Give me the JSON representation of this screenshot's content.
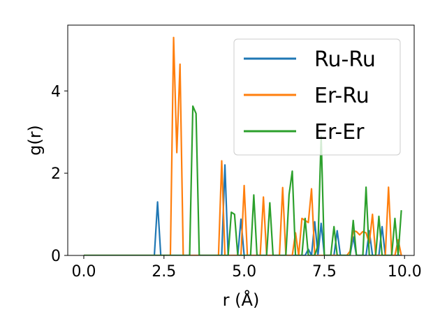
{
  "chart_data": {
    "type": "line",
    "title": "",
    "xlabel": "r (Å)",
    "ylabel": "g(r)",
    "xlim": [
      -0.5,
      10.3
    ],
    "ylim": [
      0,
      5.6
    ],
    "xticks": [
      0.0,
      2.5,
      5.0,
      7.5,
      10.0
    ],
    "xtick_labels": [
      "0.0",
      "2.5",
      "5.0",
      "7.5",
      "10.0"
    ],
    "yticks": [
      0,
      2,
      4
    ],
    "ytick_labels": [
      "0",
      "2",
      "4"
    ],
    "grid": false,
    "legend": "top-right",
    "series": [
      {
        "name": "Ru-Ru",
        "color": "#1f77b4",
        "points": [
          [
            0,
            0
          ],
          [
            2.2,
            0
          ],
          [
            2.3,
            1.3
          ],
          [
            2.4,
            0
          ],
          [
            4.3,
            0
          ],
          [
            4.4,
            2.2
          ],
          [
            4.5,
            0
          ],
          [
            4.8,
            0
          ],
          [
            4.9,
            0.88
          ],
          [
            5.0,
            0
          ],
          [
            6.9,
            0
          ],
          [
            7.0,
            0.15
          ],
          [
            7.1,
            0
          ],
          [
            7.2,
            0.82
          ],
          [
            7.3,
            0
          ],
          [
            7.4,
            0.78
          ],
          [
            7.5,
            0
          ],
          [
            7.8,
            0
          ],
          [
            7.9,
            0.6
          ],
          [
            8.0,
            0
          ],
          [
            8.3,
            0
          ],
          [
            8.4,
            0.45
          ],
          [
            8.5,
            0
          ],
          [
            8.8,
            0
          ],
          [
            8.9,
            0.6
          ],
          [
            9.0,
            0
          ],
          [
            9.2,
            0
          ],
          [
            9.3,
            0.7
          ],
          [
            9.4,
            0
          ],
          [
            9.9,
            0
          ]
        ]
      },
      {
        "name": "Er-Ru",
        "color": "#ff7f0e",
        "points": [
          [
            0,
            0
          ],
          [
            2.7,
            0
          ],
          [
            2.8,
            5.3
          ],
          [
            2.9,
            2.5
          ],
          [
            3.0,
            4.65
          ],
          [
            3.1,
            0
          ],
          [
            4.2,
            0
          ],
          [
            4.3,
            2.3
          ],
          [
            4.4,
            0
          ],
          [
            4.9,
            0
          ],
          [
            5.0,
            1.7
          ],
          [
            5.1,
            0
          ],
          [
            5.5,
            0
          ],
          [
            5.6,
            1.42
          ],
          [
            5.7,
            0
          ],
          [
            6.1,
            0
          ],
          [
            6.2,
            1.65
          ],
          [
            6.3,
            0
          ],
          [
            6.5,
            0
          ],
          [
            6.6,
            0.55
          ],
          [
            6.7,
            0
          ],
          [
            6.8,
            0.9
          ],
          [
            6.9,
            0.85
          ],
          [
            7.0,
            0.8
          ],
          [
            7.1,
            1.62
          ],
          [
            7.2,
            0
          ],
          [
            8.2,
            0
          ],
          [
            8.3,
            0.1
          ],
          [
            8.4,
            0.6
          ],
          [
            8.5,
            0.58
          ],
          [
            8.6,
            0.5
          ],
          [
            8.7,
            0.58
          ],
          [
            8.8,
            0.55
          ],
          [
            8.9,
            0.3
          ],
          [
            9.0,
            1.0
          ],
          [
            9.1,
            0
          ],
          [
            9.4,
            0
          ],
          [
            9.5,
            1.66
          ],
          [
            9.6,
            0
          ],
          [
            9.7,
            0
          ],
          [
            9.8,
            0.38
          ],
          [
            9.9,
            0
          ]
        ]
      },
      {
        "name": "Er-Er",
        "color": "#2ca02c",
        "points": [
          [
            0,
            0
          ],
          [
            3.3,
            0
          ],
          [
            3.4,
            3.63
          ],
          [
            3.5,
            3.45
          ],
          [
            3.6,
            0
          ],
          [
            4.5,
            0
          ],
          [
            4.6,
            1.05
          ],
          [
            4.7,
            1.0
          ],
          [
            4.8,
            0
          ],
          [
            5.2,
            0
          ],
          [
            5.3,
            1.47
          ],
          [
            5.4,
            0
          ],
          [
            5.7,
            0
          ],
          [
            5.8,
            1.28
          ],
          [
            5.9,
            0
          ],
          [
            6.3,
            0
          ],
          [
            6.4,
            1.48
          ],
          [
            6.5,
            2.05
          ],
          [
            6.6,
            0
          ],
          [
            6.8,
            0
          ],
          [
            6.9,
            0.9
          ],
          [
            7.0,
            0
          ],
          [
            7.2,
            0
          ],
          [
            7.3,
            0.25
          ],
          [
            7.4,
            2.9
          ],
          [
            7.5,
            0
          ],
          [
            7.7,
            0
          ],
          [
            7.8,
            0.7
          ],
          [
            7.9,
            0
          ],
          [
            8.3,
            0
          ],
          [
            8.4,
            0.85
          ],
          [
            8.5,
            0
          ],
          [
            8.7,
            0
          ],
          [
            8.8,
            1.66
          ],
          [
            8.9,
            0
          ],
          [
            9.1,
            0
          ],
          [
            9.2,
            0.95
          ],
          [
            9.3,
            0
          ],
          [
            9.6,
            0
          ],
          [
            9.7,
            0.9
          ],
          [
            9.8,
            0
          ],
          [
            9.9,
            1.1
          ]
        ]
      }
    ]
  }
}
